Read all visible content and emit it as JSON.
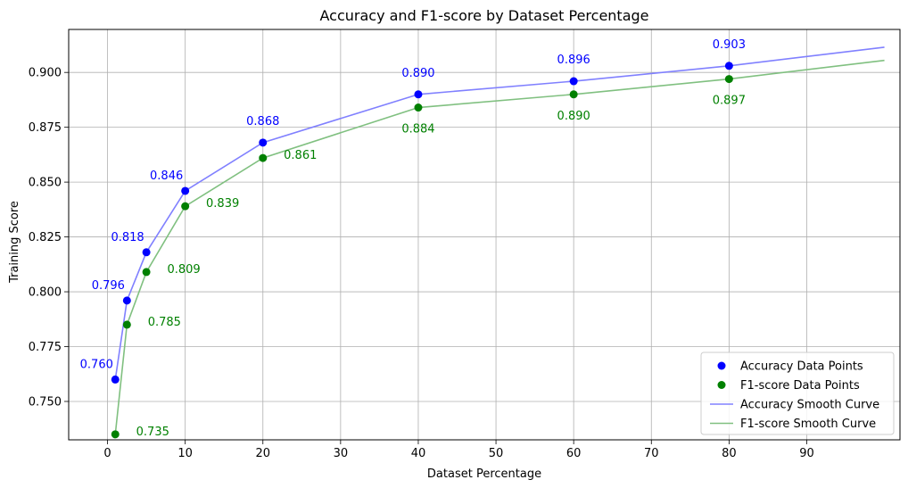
{
  "chart_data": {
    "type": "line",
    "title": "Accuracy and F1-score by Dataset Percentage",
    "xlabel": "Dataset Percentage",
    "ylabel": "Training Score",
    "xlim": [
      -5,
      102
    ],
    "ylim": [
      0.7325,
      0.9196
    ],
    "xticks": [
      0,
      10,
      20,
      30,
      40,
      50,
      60,
      70,
      80,
      90
    ],
    "yticks": [
      0.75,
      0.775,
      0.8,
      0.825,
      0.85,
      0.875,
      0.9
    ],
    "ytick_labels": [
      "0.750",
      "0.775",
      "0.800",
      "0.825",
      "0.850",
      "0.875",
      "0.900"
    ],
    "grid": true,
    "legend_position": "bottom-right",
    "x": [
      1,
      2.5,
      5,
      10,
      20,
      40,
      60,
      80
    ],
    "series": [
      {
        "name": "Accuracy Data Points",
        "kind": "points",
        "color": "#0000ff",
        "values": [
          0.76,
          0.796,
          0.818,
          0.846,
          0.868,
          0.89,
          0.896,
          0.903
        ],
        "labels": [
          "0.760",
          "0.796",
          "0.818",
          "0.846",
          "0.868",
          "0.890",
          "0.896",
          "0.903"
        ]
      },
      {
        "name": "F1-score Data Points",
        "kind": "points",
        "color": "#008000",
        "values": [
          0.735,
          0.785,
          0.809,
          0.839,
          0.861,
          0.884,
          0.89,
          0.897
        ],
        "labels": [
          "0.735",
          "0.785",
          "0.809",
          "0.839",
          "0.861",
          "0.884",
          "0.890",
          "0.897"
        ]
      },
      {
        "name": "Accuracy Smooth Curve",
        "kind": "line",
        "color": "#8080ff",
        "x": [
          1,
          2.5,
          5,
          10,
          20,
          40,
          60,
          80,
          100
        ],
        "values": [
          0.76,
          0.796,
          0.818,
          0.846,
          0.868,
          0.89,
          0.896,
          0.903,
          0.9115
        ]
      },
      {
        "name": "F1-score Smooth Curve",
        "kind": "line",
        "color": "#80c080",
        "x": [
          1,
          2.5,
          5,
          10,
          20,
          40,
          60,
          80,
          100
        ],
        "values": [
          0.735,
          0.785,
          0.809,
          0.839,
          0.861,
          0.884,
          0.89,
          0.897,
          0.9055
        ]
      }
    ]
  }
}
